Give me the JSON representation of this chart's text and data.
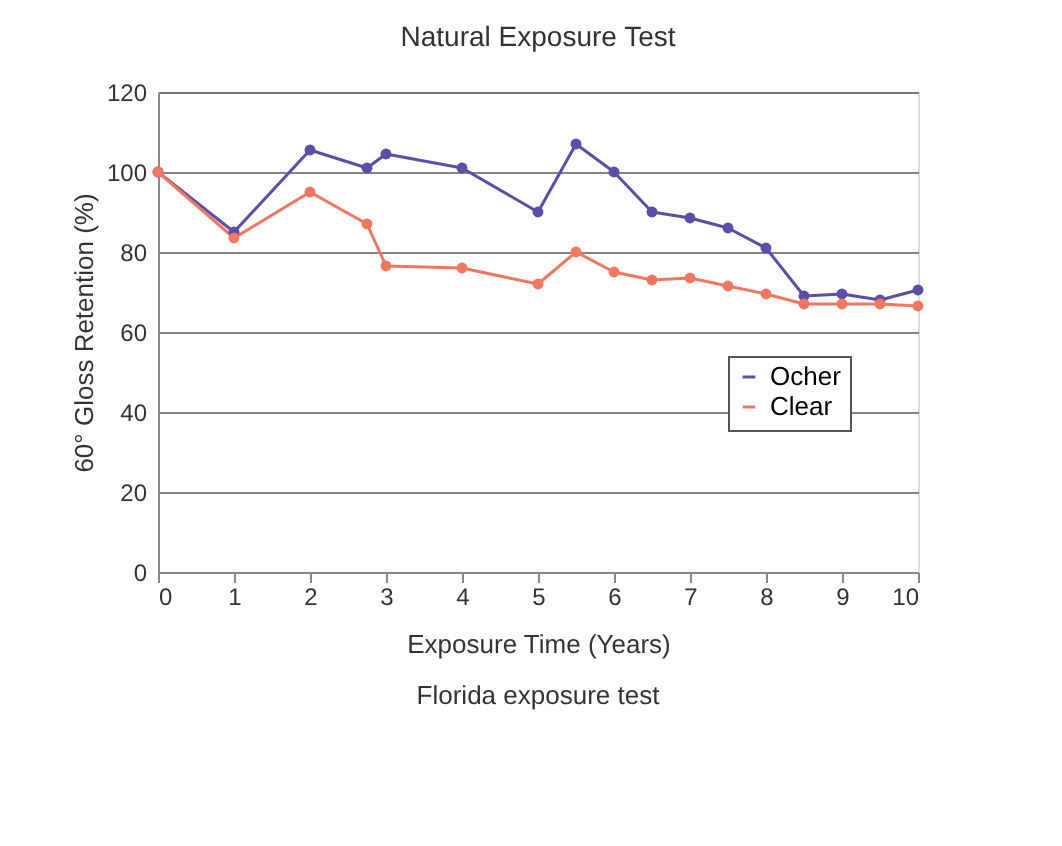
{
  "chart_data": {
    "type": "line",
    "title": "Natural Exposure Test",
    "xlabel": "Exposure Time (Years)",
    "ylabel": "60° Gloss Retention (%)",
    "annotations": [
      "Florida exposure test"
    ],
    "series": [
      {
        "name": "Ocher",
        "color": "#5a4ea8",
        "x": [
          0,
          1,
          2,
          2.75,
          3,
          4,
          5,
          5.5,
          6,
          6.5,
          7,
          7.5,
          8,
          8.5,
          9,
          9.5,
          10
        ],
        "values": [
          100,
          85,
          105.5,
          101,
          104.5,
          101,
          90,
          107,
          100,
          90,
          88.5,
          86,
          81,
          69,
          69.5,
          68,
          70.5
        ]
      },
      {
        "name": "Clear",
        "color": "#f07860",
        "x": [
          0,
          1,
          2,
          2.75,
          3,
          4,
          5,
          5.5,
          6,
          6.5,
          7,
          7.5,
          8,
          8.5,
          9,
          9.5,
          10
        ],
        "values": [
          100,
          83.5,
          95,
          87,
          76.5,
          76,
          72,
          80,
          75,
          73,
          73.5,
          71.5,
          69.5,
          67,
          67,
          67,
          66.5
        ]
      }
    ],
    "xlim": [
      0,
      10
    ],
    "xticks": [
      0,
      1,
      2,
      3,
      4,
      5,
      6,
      7,
      8,
      9,
      10
    ],
    "ylim": [
      0,
      120
    ],
    "yticks": [
      0,
      20,
      40,
      60,
      80,
      100,
      120
    ],
    "grid": "y",
    "legend": "right",
    "marker": "circle",
    "line_style": "solid"
  }
}
